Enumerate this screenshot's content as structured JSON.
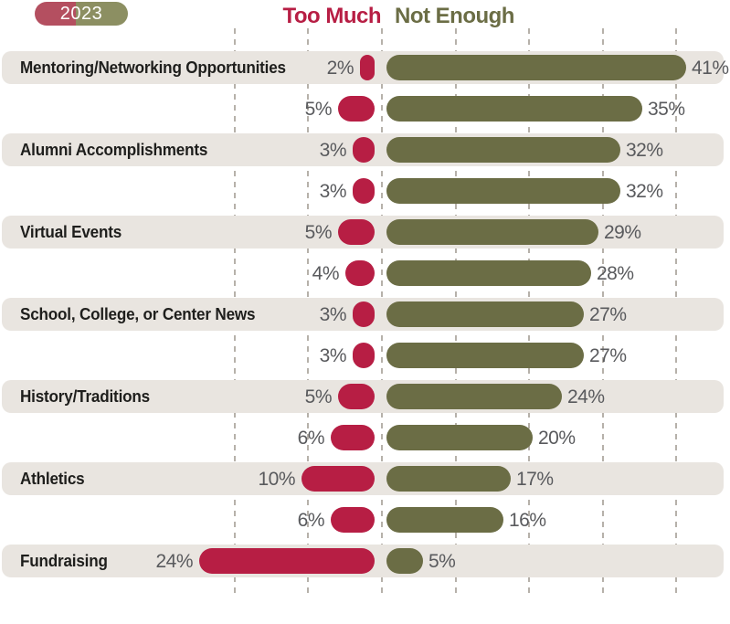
{
  "legend": {
    "year_badge": "2023"
  },
  "header": {
    "too_much_label": "Too Much",
    "not_enough_label": "Not Enough"
  },
  "colors": {
    "too_much": "#b71e44",
    "not_enough": "#6b6d45",
    "legend_red_tint": "#b44f60",
    "legend_green_tint": "#8c8f62",
    "row_shade": "#e9e5e0",
    "value_text": "#595a5d",
    "category_text": "#1e1e1c",
    "gridline": "#b6b1aa"
  },
  "chart_data": {
    "type": "bar",
    "variant": "diverging horizontal pill bars; labeled shaded row paired with an unlabeled row beneath it",
    "title": "",
    "unit": "%",
    "legend_position": "top",
    "series_labels": {
      "left": "Too Much",
      "right": "Not Enough"
    },
    "axis": {
      "min": -20,
      "max": 41,
      "tick_interval": 10,
      "ticks": [
        -20,
        -10,
        0,
        10,
        20,
        30,
        40
      ],
      "gridlines": "dashed vertical"
    },
    "rows": [
      {
        "category": "Mentoring/Networking Opportunities",
        "too_much": 2,
        "not_enough": 41,
        "shaded": true
      },
      {
        "category": "",
        "too_much": 5,
        "not_enough": 35,
        "shaded": false
      },
      {
        "category": "Alumni Accomplishments",
        "too_much": 3,
        "not_enough": 32,
        "shaded": true
      },
      {
        "category": "",
        "too_much": 3,
        "not_enough": 32,
        "shaded": false
      },
      {
        "category": "Virtual Events",
        "too_much": 5,
        "not_enough": 29,
        "shaded": true
      },
      {
        "category": "",
        "too_much": 4,
        "not_enough": 28,
        "shaded": false
      },
      {
        "category": "School, College, or Center News",
        "too_much": 3,
        "not_enough": 27,
        "shaded": true
      },
      {
        "category": "",
        "too_much": 3,
        "not_enough": 27,
        "shaded": false
      },
      {
        "category": "History/Traditions",
        "too_much": 5,
        "not_enough": 24,
        "shaded": true
      },
      {
        "category": "",
        "too_much": 6,
        "not_enough": 20,
        "shaded": false
      },
      {
        "category": "Athletics",
        "too_much": 10,
        "not_enough": 17,
        "shaded": true
      },
      {
        "category": "",
        "too_much": 6,
        "not_enough": 16,
        "shaded": false
      },
      {
        "category": "Fundraising",
        "too_much": 24,
        "not_enough": 5,
        "shaded": true
      }
    ]
  }
}
